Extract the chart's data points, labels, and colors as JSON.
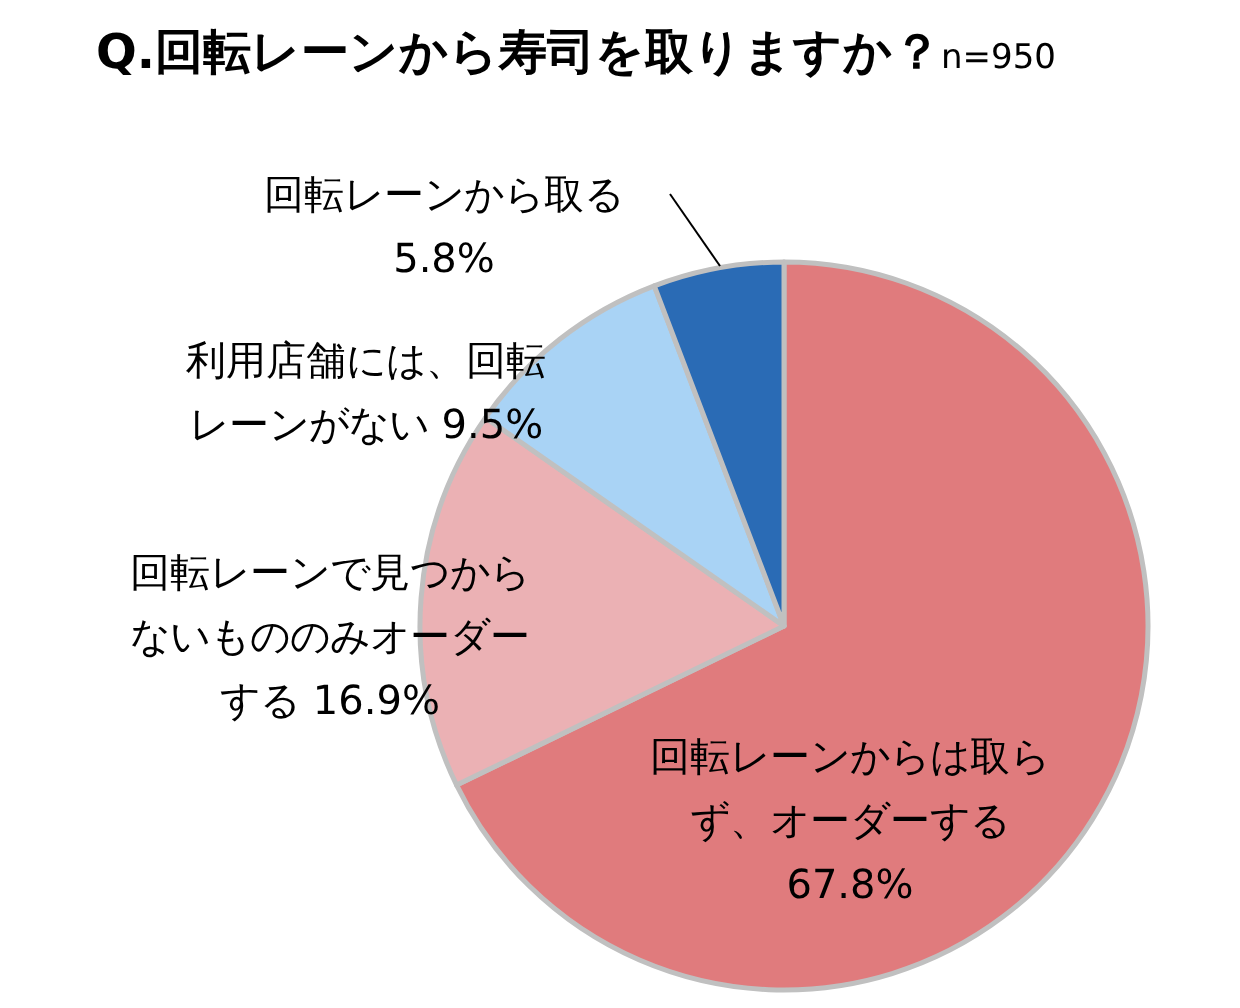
{
  "chart_data": {
    "type": "pie",
    "title": "Q.回転レーンから寿司を取りますか？",
    "subtitle": "n=950",
    "categories": [
      "回転レーンからは取らず、オーダーする",
      "回転レーンで見つからないもののみオーダーする",
      "利用店舗には、回転レーンがない",
      "回転レーンから取る"
    ],
    "values": [
      67.8,
      16.9,
      9.5,
      5.8
    ],
    "colors": [
      "#e07b7d",
      "#ebb1b4",
      "#a9d3f5",
      "#2a6bb5"
    ],
    "value_labels": [
      "67.8%",
      "16.9%",
      "9.5%",
      "5.8%"
    ]
  }
}
